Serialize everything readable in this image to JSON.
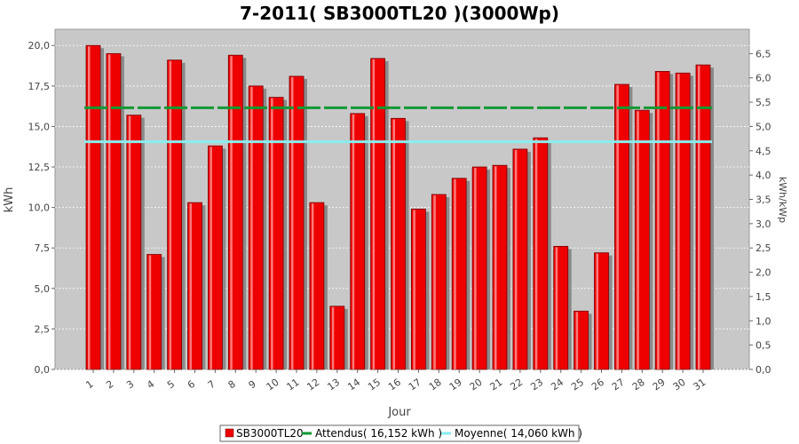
{
  "chart_data": {
    "type": "bar",
    "title": "7-2011( SB3000TL20 )(3000Wp)",
    "xlabel": "Jour",
    "ylabel": "kWh",
    "y2label": "kWh/kWp",
    "ylim": [
      0,
      21
    ],
    "y2lim": [
      0,
      7
    ],
    "yticks": [
      "0,0",
      "2,5",
      "5,0",
      "7,5",
      "10,0",
      "12,5",
      "15,0",
      "17,5",
      "20,0"
    ],
    "y2ticks": [
      "0,0",
      "0,5",
      "1,0",
      "1,5",
      "2,0",
      "2,5",
      "3,0",
      "3,5",
      "4,0",
      "4,5",
      "5,0",
      "5,5",
      "6,0",
      "6,5"
    ],
    "categories": [
      "1",
      "2",
      "3",
      "4",
      "5",
      "6",
      "7",
      "8",
      "9",
      "10",
      "11",
      "12",
      "13",
      "14",
      "15",
      "16",
      "17",
      "18",
      "19",
      "20",
      "21",
      "22",
      "23",
      "24",
      "25",
      "26",
      "27",
      "28",
      "29",
      "30",
      "31"
    ],
    "series": [
      {
        "name": "SB3000TL20",
        "color": "#ee0000",
        "values": [
          20.0,
          19.5,
          15.7,
          7.1,
          19.1,
          10.3,
          13.8,
          19.4,
          17.5,
          16.8,
          18.1,
          10.3,
          3.9,
          15.8,
          19.2,
          15.5,
          9.9,
          10.8,
          11.8,
          12.5,
          12.6,
          13.6,
          14.3,
          7.6,
          3.6,
          7.2,
          17.6,
          16.0,
          18.4,
          18.3,
          18.8
        ]
      }
    ],
    "lines": [
      {
        "name": "Attendus( 16,152 kWh )",
        "value": 16.152,
        "color": "#119933"
      },
      {
        "name": "Moyenne( 14,060 kWh )",
        "value": 14.06,
        "color": "#88eeee"
      }
    ],
    "legend_position": "bottom",
    "grid": true
  }
}
